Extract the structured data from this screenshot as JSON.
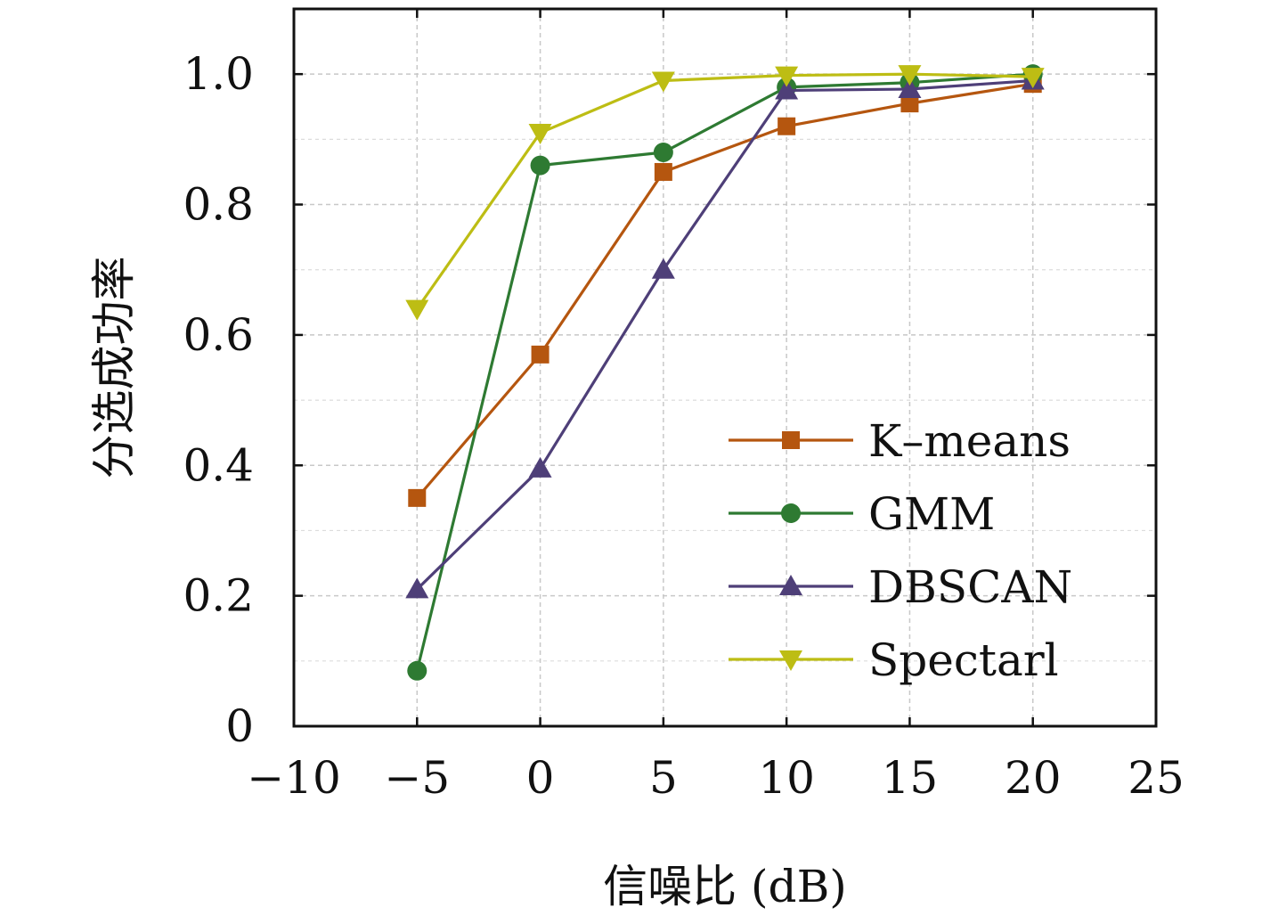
{
  "chart_data": {
    "type": "line",
    "title": "",
    "xlabel": "信噪比 (dB)",
    "ylabel": "分选成功率",
    "xlim": [
      -10,
      25
    ],
    "ylim": [
      0,
      1.1
    ],
    "xticks": [
      -10,
      -5,
      0,
      5,
      10,
      15,
      20,
      25
    ],
    "xtick_labels": [
      "−10",
      "−5",
      "0",
      "5",
      "10",
      "15",
      "20",
      "25"
    ],
    "yticks": [
      0,
      0.2,
      0.4,
      0.6,
      0.8,
      1.0
    ],
    "ytick_labels": [
      "0",
      "0.2",
      "0.4",
      "0.6",
      "0.8",
      "1.0"
    ],
    "grid": true,
    "legend_position": "bottom-right",
    "x": [
      -5,
      0,
      5,
      10,
      15,
      20
    ],
    "series": [
      {
        "name": "K–means",
        "color": "#b5560f",
        "marker": "square",
        "values": [
          0.35,
          0.57,
          0.85,
          0.92,
          0.955,
          0.985
        ]
      },
      {
        "name": "GMM",
        "color": "#2e7a32",
        "marker": "circle",
        "values": [
          0.085,
          0.86,
          0.88,
          0.98,
          0.987,
          1.0
        ]
      },
      {
        "name": "DBSCAN",
        "color": "#4e3f78",
        "marker": "triangle-up",
        "values": [
          0.21,
          0.395,
          0.7,
          0.975,
          0.977,
          0.99
        ]
      },
      {
        "name": "Spectarl",
        "color": "#bdbd14",
        "marker": "triangle-down",
        "values": [
          0.64,
          0.91,
          0.99,
          0.998,
          1.0,
          0.996
        ]
      }
    ]
  }
}
